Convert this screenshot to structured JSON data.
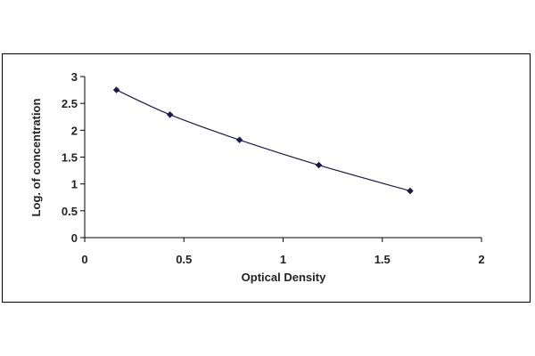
{
  "chart_data": {
    "type": "line",
    "title": "",
    "xlabel": "Optical Density",
    "ylabel": "Log. of concentration",
    "xlim": [
      0,
      2
    ],
    "ylim": [
      0,
      3
    ],
    "x_ticks": [
      "0",
      "0.5",
      "1",
      "1.5",
      "2"
    ],
    "y_ticks": [
      "0",
      "0.5",
      "1",
      "1.5",
      "2",
      "2.5",
      "3"
    ],
    "grid": false,
    "legend": "none",
    "series": [
      {
        "x": [
          0.16,
          0.43,
          0.78,
          1.18,
          1.64
        ],
        "y": [
          2.75,
          2.29,
          1.82,
          1.35,
          0.87
        ],
        "color": "#1a1a4e",
        "marker": "diamond"
      }
    ]
  }
}
